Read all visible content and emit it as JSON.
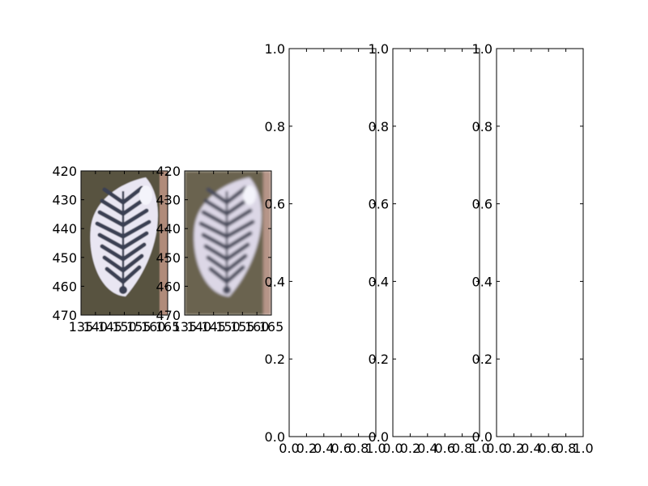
{
  "figure": {
    "background": "#ffffff"
  },
  "chart_data": [
    {
      "type": "image",
      "content": "leaf-shaped patterned object with striped chevron markings, sharp crop",
      "xlim": [
        135,
        165
      ],
      "ylim": [
        470,
        420
      ],
      "x_ticks": [
        "135",
        "140",
        "145",
        "150",
        "155",
        "160",
        "165"
      ],
      "y_ticks": [
        "420",
        "430",
        "440",
        "450",
        "460",
        "470"
      ],
      "colors": {
        "background": "#58533f",
        "leaf": "#e9e6f2",
        "stripes": "#3a3f52",
        "edge_tint": "#c79a8a"
      }
    },
    {
      "type": "image",
      "content": "same leaf-shaped object, blurred version",
      "xlim": [
        135,
        165
      ],
      "ylim": [
        470,
        420
      ],
      "x_ticks": [
        "135",
        "140",
        "145",
        "150",
        "155",
        "160",
        "165"
      ],
      "y_ticks": [
        "420",
        "430",
        "440",
        "450",
        "460",
        "470"
      ],
      "colors": {
        "background": "#6b644f",
        "leaf": "#dcd7e6",
        "stripes": "#4a4c5c",
        "edge_tint": "#c9a196"
      }
    },
    {
      "type": "empty",
      "xlim": [
        0.0,
        1.0
      ],
      "ylim": [
        0.0,
        1.0
      ],
      "x_ticks": [
        "0.0",
        "0.2",
        "0.4",
        "0.6",
        "0.8",
        "1.0"
      ],
      "y_ticks": [
        "0.0",
        "0.2",
        "0.4",
        "0.6",
        "0.8",
        "1.0"
      ]
    },
    {
      "type": "empty",
      "xlim": [
        0.0,
        1.0
      ],
      "ylim": [
        0.0,
        1.0
      ],
      "x_ticks": [
        "0.0",
        "0.2",
        "0.4",
        "0.6",
        "0.8",
        "1.0"
      ],
      "y_ticks": [
        "0.0",
        "0.2",
        "0.4",
        "0.6",
        "0.8",
        "1.0"
      ]
    },
    {
      "type": "empty",
      "xlim": [
        0.0,
        1.0
      ],
      "ylim": [
        0.0,
        1.0
      ],
      "x_ticks": [
        "0.0",
        "0.2",
        "0.4",
        "0.6",
        "0.8",
        "1.0"
      ],
      "y_ticks": [
        "0.0",
        "0.2",
        "0.4",
        "0.6",
        "0.8",
        "1.0"
      ]
    }
  ]
}
